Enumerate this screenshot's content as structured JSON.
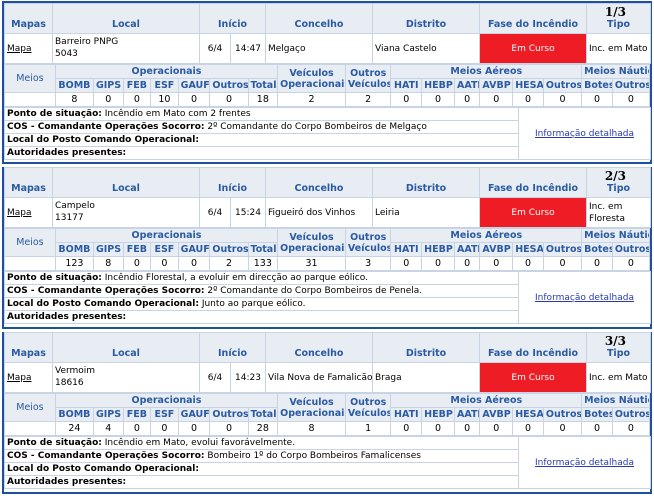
{
  "headers": {
    "mapas": "Mapas",
    "local": "Local",
    "inicio": "Início",
    "concelho": "Concelho",
    "distrito": "Distrito",
    "fase": "Fase do Incêndio",
    "tipo": "Tipo",
    "meios": "Meios",
    "operacionais": "Operacionais",
    "veiculos_op": "Veículos Operacionais",
    "outros_veiculos": "Outros Veículos",
    "meios_aereos": "Meios Aéreos",
    "meios_nauticos": "Meios Náuticos",
    "bomb": "BOMB",
    "gips": "GIPS",
    "feb": "FEB",
    "esf": "ESF",
    "gauf": "GAUF",
    "outros": "Outros",
    "total": "Total",
    "hati": "HATI",
    "hebp": "HEBP",
    "aati": "AATI",
    "avbp": "AVBP",
    "hesa": "HESA",
    "botes": "Botes",
    "ponto": "Ponto de situação:",
    "cos": "COS - Comandante Operações Socorro:",
    "local_pco": "Local do Posto Comando Operacional:",
    "autoridades": "Autoridades presentes:",
    "mapa_link": "Mapa",
    "detalhe": "Informação detalhada"
  },
  "incidents": [
    {
      "index": "1/3",
      "local_name": "Barreiro PNPG",
      "local_code": "5043",
      "dia": "6/4",
      "hora": "14:47",
      "concelho": "Melgaço",
      "distrito": "Viana Castelo",
      "fase": "Em Curso",
      "tipo": "Inc. em Mato",
      "op": [
        "8",
        "0",
        "0",
        "10",
        "0",
        "0",
        "18"
      ],
      "veic_op": "2",
      "outros_veic": "2",
      "aereos": [
        "0",
        "0",
        "0",
        "0",
        "0",
        "0"
      ],
      "nauticos": [
        "0",
        "0"
      ],
      "ponto": "Incêndio em Mato com 2 frentes",
      "cos": "2º Comandante do Corpo Bombeiros de Melgaço",
      "local_pco": "",
      "autoridades": ""
    },
    {
      "index": "2/3",
      "local_name": "Campelo",
      "local_code": "13177",
      "dia": "6/4",
      "hora": "15:24",
      "concelho": "Figueiró dos Vinhos",
      "distrito": "Leiria",
      "fase": "Em Curso",
      "tipo": "Inc. em Floresta",
      "op": [
        "123",
        "8",
        "0",
        "0",
        "0",
        "2",
        "133"
      ],
      "veic_op": "31",
      "outros_veic": "3",
      "aereos": [
        "0",
        "0",
        "0",
        "0",
        "0",
        "0"
      ],
      "nauticos": [
        "0",
        "0"
      ],
      "ponto": "Incêndio Florestal, a evoluir em direcção ao parque eólico.",
      "cos": "2º Comandante do Corpo Bombeiros de Penela.",
      "local_pco": "Junto ao parque eólico.",
      "autoridades": ""
    },
    {
      "index": "3/3",
      "local_name": "Vermoim",
      "local_code": "18616",
      "dia": "6/4",
      "hora": "14:23",
      "concelho": "Vila Nova de Famalicão",
      "distrito": "Braga",
      "fase": "Em Curso",
      "tipo": "Inc. em Mato",
      "op": [
        "24",
        "4",
        "0",
        "0",
        "0",
        "0",
        "28"
      ],
      "veic_op": "8",
      "outros_veic": "1",
      "aereos": [
        "0",
        "0",
        "0",
        "0",
        "0",
        "0"
      ],
      "nauticos": [
        "0",
        "0"
      ],
      "ponto": "Incêndio em Mato, evolui favorávelmente.",
      "cos": "Bombeiro 1º do Corpo Bombeiros Famalicenses",
      "local_pco": "",
      "autoridades": ""
    }
  ],
  "colors": {
    "header_bg": "#e8edf3",
    "header_text": "#2a5aa3",
    "border": "#1e4fa0",
    "fase_bg": "#ee1c24"
  }
}
